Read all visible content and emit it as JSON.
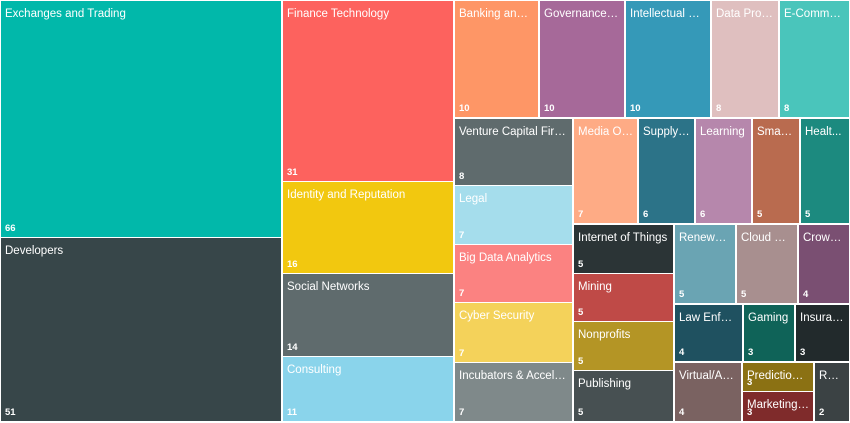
{
  "chart_data": {
    "type": "treemap",
    "title": "",
    "items": [
      {
        "label": "Exchanges and Trading",
        "value": 66,
        "color": "#01B8AA"
      },
      {
        "label": "Developers",
        "value": 51,
        "color": "#374649"
      },
      {
        "label": "Finance Technology",
        "value": 31,
        "color": "#FD625E"
      },
      {
        "label": "Identity and Reputation",
        "value": 16,
        "color": "#F2C80F"
      },
      {
        "label": "Social Networks",
        "value": 14,
        "color": "#5F6B6D"
      },
      {
        "label": "Consulting",
        "value": 11,
        "color": "#8AD4EB"
      },
      {
        "label": "Banking and L...",
        "value": 10,
        "color": "#FE9666"
      },
      {
        "label": "Governance a...",
        "value": 10,
        "color": "#A66999"
      },
      {
        "label": "Intellectual Pr...",
        "value": 10,
        "color": "#3599B8"
      },
      {
        "label": "Data Prove...",
        "value": 8,
        "color": "#DFBFBF"
      },
      {
        "label": "E-Commer...",
        "value": 8,
        "color": "#4AC5BB"
      },
      {
        "label": "Venture Capital Firms",
        "value": 8,
        "color": "#5F6B6D"
      },
      {
        "label": "Legal",
        "value": 7,
        "color": "#A5DDEC"
      },
      {
        "label": "Big Data Analytics",
        "value": 7,
        "color": "#FB8281"
      },
      {
        "label": "Cyber Security",
        "value": 7,
        "color": "#F4D25A"
      },
      {
        "label": "Incubators & Acceler...",
        "value": 7,
        "color": "#7F898A"
      },
      {
        "label": "Media Ou...",
        "value": 7,
        "color": "#FEAB85"
      },
      {
        "label": "Supply ...",
        "value": 6,
        "color": "#2C7388"
      },
      {
        "label": "Learning",
        "value": 6,
        "color": "#B687AC"
      },
      {
        "label": "Smart ...",
        "value": 5,
        "color": "#B96B4F"
      },
      {
        "label": "Healt...",
        "value": 5,
        "color": "#1C8A7F"
      },
      {
        "label": "Internet of Things",
        "value": 5,
        "color": "#2B3436"
      },
      {
        "label": "Mining",
        "value": 5,
        "color": "#BF4A47"
      },
      {
        "label": "Nonprofits",
        "value": 5,
        "color": "#B49525"
      },
      {
        "label": "Publishing",
        "value": 5,
        "color": "#475052"
      },
      {
        "label": "Renewab...",
        "value": 5,
        "color": "#6AA4B3"
      },
      {
        "label": "Cloud Se...",
        "value": 5,
        "color": "#A88F8F"
      },
      {
        "label": "Crowd...",
        "value": 4,
        "color": "#7A4F72"
      },
      {
        "label": "Law Enforc...",
        "value": 4,
        "color": "#1F5160"
      },
      {
        "label": "Gaming",
        "value": 3,
        "color": "#0F6358"
      },
      {
        "label": "Insuran...",
        "value": 3,
        "color": "#222A2C"
      },
      {
        "label": "Virtual/Au...",
        "value": 4,
        "color": "#7A6261"
      },
      {
        "label": "Prediction ...",
        "value": 3,
        "color": "#8B7113"
      },
      {
        "label": "Marketing ...",
        "value": 3,
        "color": "#7F2B2B"
      },
      {
        "label": "Rea...",
        "value": 2,
        "color": "#3B4244"
      }
    ]
  }
}
